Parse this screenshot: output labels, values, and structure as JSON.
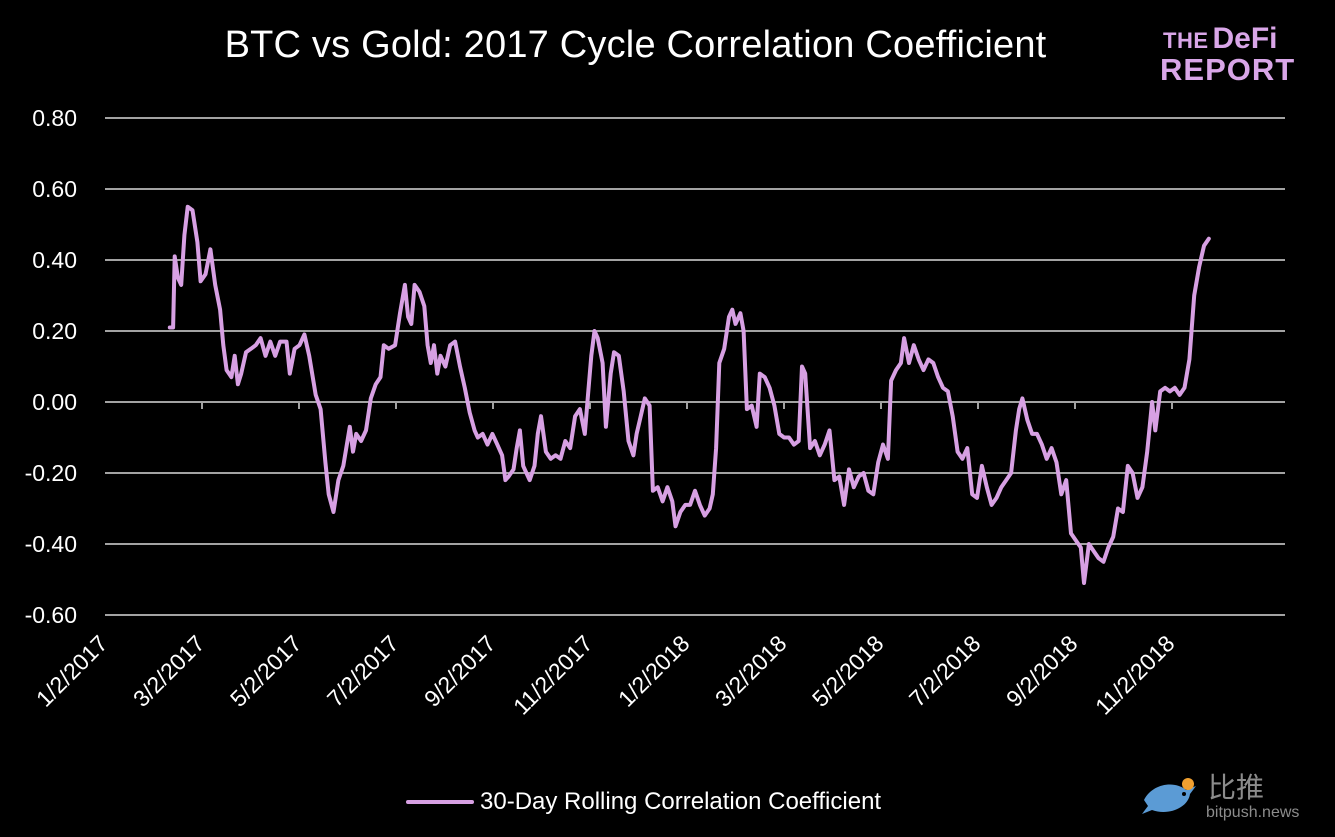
{
  "logo": {
    "line1_a": "THE",
    "line1_b": "DeFi",
    "line2": "REPORT"
  },
  "watermark": {
    "cn": "比推",
    "domain": "bitpush.news"
  },
  "chart_data": {
    "type": "line",
    "title": "BTC vs Gold: 2017 Cycle Correlation Coefficient",
    "xlabel": "",
    "ylabel": "",
    "ylim": [
      -0.6,
      0.8
    ],
    "y_ticks": [
      "0.80",
      "0.60",
      "0.40",
      "0.20",
      "0.00",
      "-0.20",
      "-0.40",
      "-0.60"
    ],
    "x_ticks": [
      "1/2/2017",
      "3/2/2017",
      "5/2/2017",
      "7/2/2017",
      "9/2/2017",
      "11/2/2017",
      "1/2/2018",
      "3/2/2018",
      "5/2/2018",
      "7/2/2018",
      "9/2/2018",
      "11/2/2018"
    ],
    "x_range": [
      "2017-01-02",
      "2018-12-31"
    ],
    "grid": true,
    "legend_position": "bottom",
    "line_color": "#d7a0e3",
    "series": [
      {
        "name": "30-Day Rolling Correlation Coefficient",
        "points": [
          [
            "2017-02-11",
            0.21
          ],
          [
            "2017-02-13",
            0.21
          ],
          [
            "2017-02-14",
            0.41
          ],
          [
            "2017-02-16",
            0.35
          ],
          [
            "2017-02-18",
            0.33
          ],
          [
            "2017-02-20",
            0.47
          ],
          [
            "2017-02-22",
            0.55
          ],
          [
            "2017-02-25",
            0.54
          ],
          [
            "2017-02-28",
            0.45
          ],
          [
            "2017-03-02",
            0.34
          ],
          [
            "2017-03-05",
            0.36
          ],
          [
            "2017-03-08",
            0.43
          ],
          [
            "2017-03-11",
            0.33
          ],
          [
            "2017-03-14",
            0.26
          ],
          [
            "2017-03-16",
            0.16
          ],
          [
            "2017-03-18",
            0.09
          ],
          [
            "2017-03-21",
            0.07
          ],
          [
            "2017-03-23",
            0.13
          ],
          [
            "2017-03-25",
            0.05
          ],
          [
            "2017-03-27",
            0.08
          ],
          [
            "2017-03-30",
            0.14
          ],
          [
            "2017-04-02",
            0.15
          ],
          [
            "2017-04-05",
            0.16
          ],
          [
            "2017-04-08",
            0.18
          ],
          [
            "2017-04-11",
            0.13
          ],
          [
            "2017-04-14",
            0.17
          ],
          [
            "2017-04-17",
            0.13
          ],
          [
            "2017-04-20",
            0.17
          ],
          [
            "2017-04-24",
            0.17
          ],
          [
            "2017-04-26",
            0.08
          ],
          [
            "2017-04-29",
            0.15
          ],
          [
            "2017-05-02",
            0.16
          ],
          [
            "2017-05-05",
            0.19
          ],
          [
            "2017-05-08",
            0.13
          ],
          [
            "2017-05-12",
            0.02
          ],
          [
            "2017-05-15",
            -0.02
          ],
          [
            "2017-05-18",
            -0.17
          ],
          [
            "2017-05-20",
            -0.26
          ],
          [
            "2017-05-23",
            -0.31
          ],
          [
            "2017-05-26",
            -0.22
          ],
          [
            "2017-05-29",
            -0.18
          ],
          [
            "2017-06-02",
            -0.07
          ],
          [
            "2017-06-04",
            -0.14
          ],
          [
            "2017-06-06",
            -0.09
          ],
          [
            "2017-06-09",
            -0.11
          ],
          [
            "2017-06-12",
            -0.08
          ],
          [
            "2017-06-15",
            0.01
          ],
          [
            "2017-06-18",
            0.05
          ],
          [
            "2017-06-21",
            0.07
          ],
          [
            "2017-06-23",
            0.16
          ],
          [
            "2017-06-26",
            0.15
          ],
          [
            "2017-06-30",
            0.16
          ],
          [
            "2017-07-03",
            0.25
          ],
          [
            "2017-07-06",
            0.33
          ],
          [
            "2017-07-08",
            0.24
          ],
          [
            "2017-07-10",
            0.22
          ],
          [
            "2017-07-12",
            0.33
          ],
          [
            "2017-07-15",
            0.31
          ],
          [
            "2017-07-18",
            0.27
          ],
          [
            "2017-07-20",
            0.16
          ],
          [
            "2017-07-22",
            0.11
          ],
          [
            "2017-07-24",
            0.16
          ],
          [
            "2017-07-26",
            0.08
          ],
          [
            "2017-07-28",
            0.13
          ],
          [
            "2017-07-31",
            0.1
          ],
          [
            "2017-08-03",
            0.16
          ],
          [
            "2017-08-06",
            0.17
          ],
          [
            "2017-08-09",
            0.1
          ],
          [
            "2017-08-12",
            0.04
          ],
          [
            "2017-08-15",
            -0.03
          ],
          [
            "2017-08-18",
            -0.08
          ],
          [
            "2017-08-20",
            -0.1
          ],
          [
            "2017-08-23",
            -0.09
          ],
          [
            "2017-08-26",
            -0.12
          ],
          [
            "2017-08-29",
            -0.09
          ],
          [
            "2017-09-01",
            -0.12
          ],
          [
            "2017-09-04",
            -0.15
          ],
          [
            "2017-09-06",
            -0.22
          ],
          [
            "2017-09-08",
            -0.21
          ],
          [
            "2017-09-11",
            -0.19
          ],
          [
            "2017-09-13",
            -0.13
          ],
          [
            "2017-09-15",
            -0.08
          ],
          [
            "2017-09-17",
            -0.18
          ],
          [
            "2017-09-19",
            -0.2
          ],
          [
            "2017-09-21",
            -0.22
          ],
          [
            "2017-09-24",
            -0.18
          ],
          [
            "2017-09-26",
            -0.09
          ],
          [
            "2017-09-28",
            -0.04
          ],
          [
            "2017-10-01",
            -0.14
          ],
          [
            "2017-10-04",
            -0.16
          ],
          [
            "2017-10-07",
            -0.15
          ],
          [
            "2017-10-10",
            -0.16
          ],
          [
            "2017-10-13",
            -0.11
          ],
          [
            "2017-10-16",
            -0.13
          ],
          [
            "2017-10-19",
            -0.04
          ],
          [
            "2017-10-22",
            -0.02
          ],
          [
            "2017-10-25",
            -0.09
          ],
          [
            "2017-10-27",
            0.02
          ],
          [
            "2017-10-29",
            0.13
          ],
          [
            "2017-10-31",
            0.2
          ],
          [
            "2017-11-02",
            0.18
          ],
          [
            "2017-11-05",
            0.11
          ],
          [
            "2017-11-07",
            -0.07
          ],
          [
            "2017-11-10",
            0.08
          ],
          [
            "2017-11-12",
            0.14
          ],
          [
            "2017-11-15",
            0.13
          ],
          [
            "2017-11-18",
            0.03
          ],
          [
            "2017-11-21",
            -0.11
          ],
          [
            "2017-11-24",
            -0.15
          ],
          [
            "2017-11-26",
            -0.09
          ],
          [
            "2017-11-28",
            -0.05
          ],
          [
            "2017-12-01",
            0.01
          ],
          [
            "2017-12-04",
            -0.01
          ],
          [
            "2017-12-06",
            -0.25
          ],
          [
            "2017-12-09",
            -0.24
          ],
          [
            "2017-12-12",
            -0.28
          ],
          [
            "2017-12-15",
            -0.24
          ],
          [
            "2017-12-18",
            -0.28
          ],
          [
            "2017-12-20",
            -0.35
          ],
          [
            "2017-12-23",
            -0.31
          ],
          [
            "2017-12-26",
            -0.29
          ],
          [
            "2017-12-29",
            -0.29
          ],
          [
            "2018-01-01",
            -0.25
          ],
          [
            "2018-01-04",
            -0.29
          ],
          [
            "2018-01-07",
            -0.32
          ],
          [
            "2018-01-10",
            -0.3
          ],
          [
            "2018-01-12",
            -0.26
          ],
          [
            "2018-01-14",
            -0.13
          ],
          [
            "2018-01-16",
            0.11
          ],
          [
            "2018-01-19",
            0.15
          ],
          [
            "2018-01-22",
            0.24
          ],
          [
            "2018-01-24",
            0.26
          ],
          [
            "2018-01-26",
            0.22
          ],
          [
            "2018-01-29",
            0.25
          ],
          [
            "2018-01-31",
            0.2
          ],
          [
            "2018-02-02",
            -0.02
          ],
          [
            "2018-02-05",
            -0.01
          ],
          [
            "2018-02-08",
            -0.07
          ],
          [
            "2018-02-10",
            0.08
          ],
          [
            "2018-02-13",
            0.07
          ],
          [
            "2018-02-16",
            0.04
          ],
          [
            "2018-02-19",
            -0.01
          ],
          [
            "2018-02-22",
            -0.09
          ],
          [
            "2018-02-25",
            -0.1
          ],
          [
            "2018-02-28",
            -0.1
          ],
          [
            "2018-03-03",
            -0.12
          ],
          [
            "2018-03-06",
            -0.11
          ],
          [
            "2018-03-08",
            0.1
          ],
          [
            "2018-03-10",
            0.08
          ],
          [
            "2018-03-13",
            -0.13
          ],
          [
            "2018-03-16",
            -0.11
          ],
          [
            "2018-03-19",
            -0.15
          ],
          [
            "2018-03-22",
            -0.12
          ],
          [
            "2018-03-25",
            -0.08
          ],
          [
            "2018-03-28",
            -0.22
          ],
          [
            "2018-03-31",
            -0.21
          ],
          [
            "2018-04-03",
            -0.29
          ],
          [
            "2018-04-06",
            -0.19
          ],
          [
            "2018-04-09",
            -0.24
          ],
          [
            "2018-04-12",
            -0.21
          ],
          [
            "2018-04-15",
            -0.2
          ],
          [
            "2018-04-18",
            -0.25
          ],
          [
            "2018-04-21",
            -0.26
          ],
          [
            "2018-04-24",
            -0.17
          ],
          [
            "2018-04-27",
            -0.12
          ],
          [
            "2018-04-30",
            -0.16
          ],
          [
            "2018-05-02",
            0.06
          ],
          [
            "2018-05-05",
            0.09
          ],
          [
            "2018-05-08",
            0.11
          ],
          [
            "2018-05-10",
            0.18
          ],
          [
            "2018-05-13",
            0.11
          ],
          [
            "2018-05-16",
            0.16
          ],
          [
            "2018-05-19",
            0.12
          ],
          [
            "2018-05-22",
            0.09
          ],
          [
            "2018-05-25",
            0.12
          ],
          [
            "2018-05-28",
            0.11
          ],
          [
            "2018-05-31",
            0.07
          ],
          [
            "2018-06-03",
            0.04
          ],
          [
            "2018-06-06",
            0.03
          ],
          [
            "2018-06-09",
            -0.04
          ],
          [
            "2018-06-12",
            -0.14
          ],
          [
            "2018-06-15",
            -0.16
          ],
          [
            "2018-06-18",
            -0.13
          ],
          [
            "2018-06-21",
            -0.26
          ],
          [
            "2018-06-24",
            -0.27
          ],
          [
            "2018-06-27",
            -0.18
          ],
          [
            "2018-06-30",
            -0.24
          ],
          [
            "2018-07-03",
            -0.29
          ],
          [
            "2018-07-06",
            -0.27
          ],
          [
            "2018-07-09",
            -0.24
          ],
          [
            "2018-07-12",
            -0.22
          ],
          [
            "2018-07-15",
            -0.2
          ],
          [
            "2018-07-18",
            -0.08
          ],
          [
            "2018-07-20",
            -0.02
          ],
          [
            "2018-07-22",
            0.01
          ],
          [
            "2018-07-25",
            -0.05
          ],
          [
            "2018-07-28",
            -0.09
          ],
          [
            "2018-07-31",
            -0.09
          ],
          [
            "2018-08-03",
            -0.12
          ],
          [
            "2018-08-06",
            -0.16
          ],
          [
            "2018-08-09",
            -0.13
          ],
          [
            "2018-08-12",
            -0.17
          ],
          [
            "2018-08-15",
            -0.26
          ],
          [
            "2018-08-18",
            -0.22
          ],
          [
            "2018-08-21",
            -0.37
          ],
          [
            "2018-08-24",
            -0.39
          ],
          [
            "2018-08-27",
            -0.41
          ],
          [
            "2018-08-29",
            -0.51
          ],
          [
            "2018-09-01",
            -0.4
          ],
          [
            "2018-09-04",
            -0.42
          ],
          [
            "2018-09-07",
            -0.44
          ],
          [
            "2018-09-10",
            -0.45
          ],
          [
            "2018-09-13",
            -0.41
          ],
          [
            "2018-09-16",
            -0.38
          ],
          [
            "2018-09-19",
            -0.3
          ],
          [
            "2018-09-22",
            -0.31
          ],
          [
            "2018-09-25",
            -0.18
          ],
          [
            "2018-09-28",
            -0.2
          ],
          [
            "2018-10-01",
            -0.27
          ],
          [
            "2018-10-04",
            -0.24
          ],
          [
            "2018-10-07",
            -0.14
          ],
          [
            "2018-10-10",
            0.0
          ],
          [
            "2018-10-12",
            -0.08
          ],
          [
            "2018-10-15",
            0.03
          ],
          [
            "2018-10-18",
            0.04
          ],
          [
            "2018-10-21",
            0.03
          ],
          [
            "2018-10-24",
            0.04
          ],
          [
            "2018-10-27",
            0.02
          ],
          [
            "2018-10-30",
            0.04
          ],
          [
            "2018-11-02",
            0.12
          ],
          [
            "2018-11-05",
            0.3
          ],
          [
            "2018-11-08",
            0.38
          ],
          [
            "2018-11-11",
            0.44
          ],
          [
            "2018-11-14",
            0.46
          ]
        ]
      }
    ]
  }
}
